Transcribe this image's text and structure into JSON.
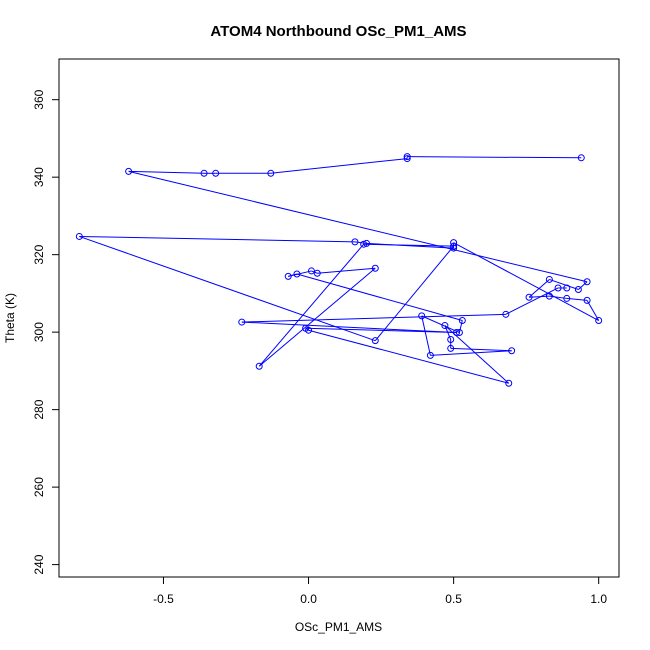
{
  "chart_data": {
    "type": "line",
    "title": "ATOM4 Northbound OSc_PM1_AMS",
    "xlabel": "OSc_PM1_AMS",
    "ylabel": "Theta (K)",
    "xlim": [
      -0.86,
      1.07
    ],
    "ylim": [
      236.8,
      370.5
    ],
    "x_ticks": [
      -0.5,
      0.0,
      0.5,
      1.0
    ],
    "x_tick_labels": [
      "-0.5",
      "0.0",
      "0.5",
      "1.0"
    ],
    "y_ticks": [
      240,
      260,
      280,
      300,
      320,
      340,
      360
    ],
    "y_tick_labels": [
      "240",
      "260",
      "280",
      "300",
      "320",
      "340",
      "360"
    ],
    "grid": false,
    "series_color": "#0000ff",
    "marker": "open-circle",
    "series": [
      {
        "x": [
          0.94,
          0.34,
          0.34,
          -0.13,
          -0.32,
          -0.36,
          -0.62,
          0.96,
          0.93,
          0.83,
          0.76,
          0.83,
          0.89,
          0.96,
          1.0,
          0.5,
          0.5,
          0.2,
          0.16,
          -0.79,
          0.23,
          0.5,
          0.19,
          -0.17,
          0.23,
          0.03,
          0.01,
          -0.07,
          -0.04,
          0.53,
          0.52,
          0.39,
          0.42,
          0.7,
          0.49,
          0.49,
          0.47,
          0.69,
          0.0,
          -0.01,
          0.51,
          -0.23,
          0.68,
          0.86,
          0.89
        ],
        "y": [
          345.0,
          345.3,
          344.8,
          341.0,
          341.0,
          341.0,
          341.5,
          313.0,
          311.0,
          313.6,
          309.0,
          309.3,
          308.7,
          308.2,
          303.0,
          323.1,
          321.7,
          322.9,
          323.3,
          324.7,
          297.8,
          322.2,
          322.7,
          291.2,
          316.5,
          315.2,
          315.8,
          314.4,
          315.0,
          303.0,
          299.9,
          304.2,
          294.0,
          295.2,
          295.8,
          298.1,
          301.7,
          286.8,
          300.5,
          301.0,
          299.9,
          302.6,
          304.6,
          311.4,
          311.4
        ]
      }
    ]
  }
}
